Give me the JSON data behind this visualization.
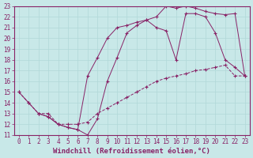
{
  "xlabel": "Windchill (Refroidissement éolien,°C)",
  "background_color": "#c8e8e8",
  "line_color": "#882266",
  "grid_color": "#b0d8d8",
  "xlim": [
    -0.5,
    23.5
  ],
  "ylim": [
    11,
    23
  ],
  "xticks": [
    0,
    1,
    2,
    3,
    4,
    5,
    6,
    7,
    8,
    9,
    10,
    11,
    12,
    13,
    14,
    15,
    16,
    17,
    18,
    19,
    20,
    21,
    22,
    23
  ],
  "yticks": [
    11,
    12,
    13,
    14,
    15,
    16,
    17,
    18,
    19,
    20,
    21,
    22,
    23
  ],
  "line1_x": [
    0,
    1,
    2,
    3,
    4,
    5,
    6,
    7,
    8,
    9,
    10,
    11,
    12,
    13,
    14,
    15,
    16,
    17,
    18,
    19,
    20,
    21,
    22,
    23
  ],
  "line1_y": [
    15,
    14,
    13,
    13,
    12,
    12,
    12,
    12.2,
    13,
    13.5,
    14,
    14.5,
    15,
    15.5,
    16,
    16.3,
    16.5,
    16.7,
    17,
    17.1,
    17.3,
    17.5,
    16.5,
    16.5
  ],
  "line2_x": [
    0,
    1,
    2,
    3,
    4,
    5,
    6,
    7,
    8,
    9,
    10,
    11,
    12,
    13,
    14,
    15,
    16,
    17,
    18,
    19,
    20,
    21,
    22,
    23
  ],
  "line2_y": [
    15,
    14,
    13,
    12.7,
    12,
    11.7,
    11.5,
    11,
    12.5,
    16,
    18.2,
    20.5,
    21.2,
    21.7,
    22,
    23,
    22.8,
    23,
    22.8,
    22.5,
    22.3,
    22.2,
    22.3,
    16.5
  ],
  "line3_x": [
    2,
    3,
    4,
    5,
    6,
    7,
    8,
    9,
    10,
    11,
    12,
    13,
    14,
    15,
    16,
    17,
    18,
    19,
    20,
    21,
    22,
    23
  ],
  "line3_y": [
    13,
    12.7,
    12,
    11.7,
    11.5,
    16.5,
    18.2,
    20.0,
    21.0,
    21.2,
    21.5,
    21.7,
    21.0,
    20.7,
    18.0,
    22.3,
    22.3,
    22.0,
    20.5,
    18.0,
    17.3,
    16.5
  ],
  "fontsize_tick": 5.5,
  "fontsize_label": 6.5
}
